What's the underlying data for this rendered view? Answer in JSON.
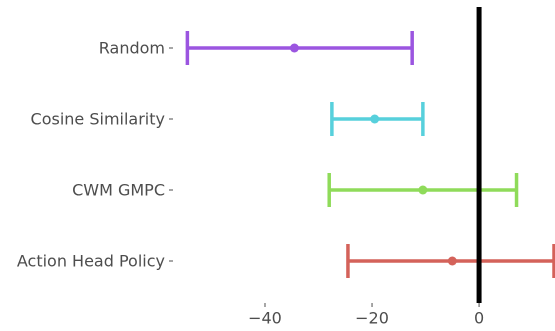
{
  "chart_data": {
    "type": "errorbar",
    "title": "",
    "xlabel": "",
    "ylabel": "",
    "xlim": [
      -57,
      14
    ],
    "xticks": [
      {
        "value": -40,
        "label": "−40"
      },
      {
        "value": -20,
        "label": "−20"
      },
      {
        "value": 0,
        "label": "0"
      }
    ],
    "reference_line": {
      "x": 0,
      "color": "#000000"
    },
    "grid": false,
    "categories": [
      "Random",
      "Cosine Similarity",
      "CWM GMPC",
      "Action Head Policy"
    ],
    "series": [
      {
        "category": "Random",
        "value": -34.5,
        "lower": -54.5,
        "upper": -12.5,
        "color": "#9b55e0"
      },
      {
        "category": "Cosine Similarity",
        "value": -19.5,
        "lower": -27.5,
        "upper": -10.5,
        "color": "#57d0dc"
      },
      {
        "category": "CWM GMPC",
        "value": -10.5,
        "lower": -28.0,
        "upper": 7.0,
        "color": "#8fdb5a"
      },
      {
        "category": "Action Head Policy",
        "value": -5.0,
        "lower": -24.5,
        "upper": 14.0,
        "color": "#d4625a"
      }
    ]
  }
}
